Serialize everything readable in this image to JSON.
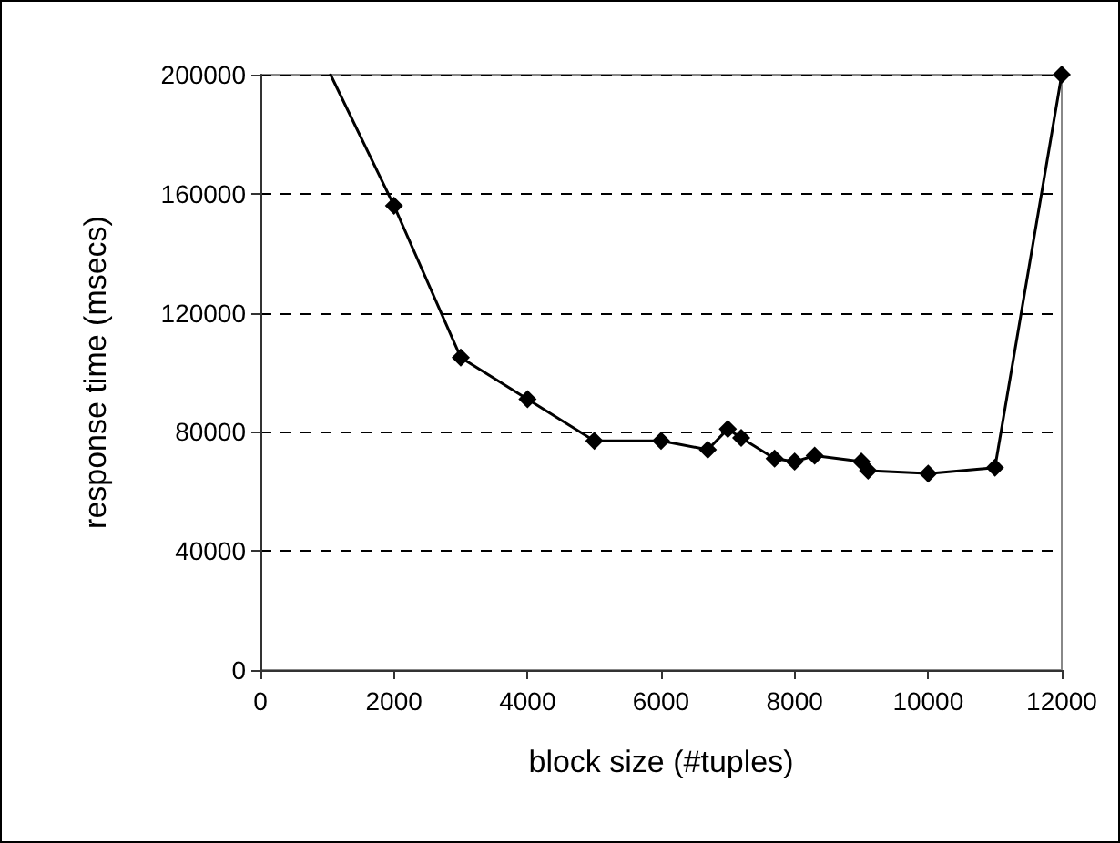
{
  "chart_data": {
    "type": "line",
    "xlabel": "block size (#tuples)",
    "ylabel": "response time (msecs)",
    "series": [
      {
        "color": "#000000",
        "x": [
          1050,
          2000
        ],
        "values": [
          200000,
          156000
        ]
      },
      {
        "color": "#000000",
        "marker": "diamond",
        "x": [
          2000,
          3000,
          4000,
          5000,
          6000,
          6700,
          7000,
          7200,
          7700,
          8000,
          8300,
          9000,
          9100,
          10000,
          11000,
          12000
        ],
        "values": [
          156000,
          105000,
          91000,
          77000,
          77000,
          74000,
          81000,
          78000,
          71000,
          70000,
          72000,
          70000,
          67000,
          66000,
          68000,
          200000
        ]
      }
    ],
    "xlim": [
      0,
      12000
    ],
    "xticks": [
      0,
      2000,
      4000,
      6000,
      8000,
      10000,
      12000
    ],
    "ylim": [
      0,
      200000
    ],
    "yticks": [
      0,
      40000,
      80000,
      120000,
      160000,
      200000
    ],
    "grid": "y",
    "line_style": "solid"
  }
}
